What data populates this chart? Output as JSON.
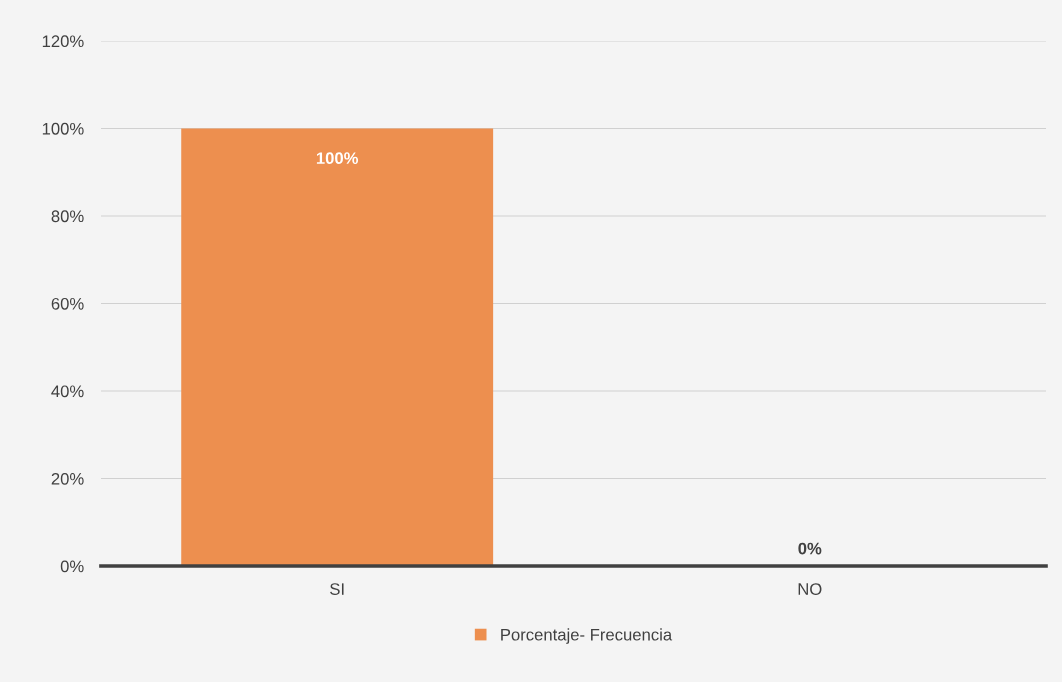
{
  "chart_data": {
    "type": "bar",
    "categories": [
      "SI",
      "NO"
    ],
    "series": [
      {
        "name": "Porcentaje- Frecuencia",
        "color": "#ed8f4f",
        "values": [
          100,
          0
        ],
        "value_labels": [
          "100%",
          "0%"
        ]
      }
    ],
    "ylim": [
      0,
      120
    ],
    "yticks": [
      {
        "value": 0,
        "label": "0%"
      },
      {
        "value": 20,
        "label": "20%"
      },
      {
        "value": 40,
        "label": "40%"
      },
      {
        "value": 60,
        "label": "60%"
      },
      {
        "value": 80,
        "label": "80%"
      },
      {
        "value": 100,
        "label": "100%"
      },
      {
        "value": 120,
        "label": "120%"
      }
    ],
    "grid": "y",
    "legend": "bottom"
  }
}
